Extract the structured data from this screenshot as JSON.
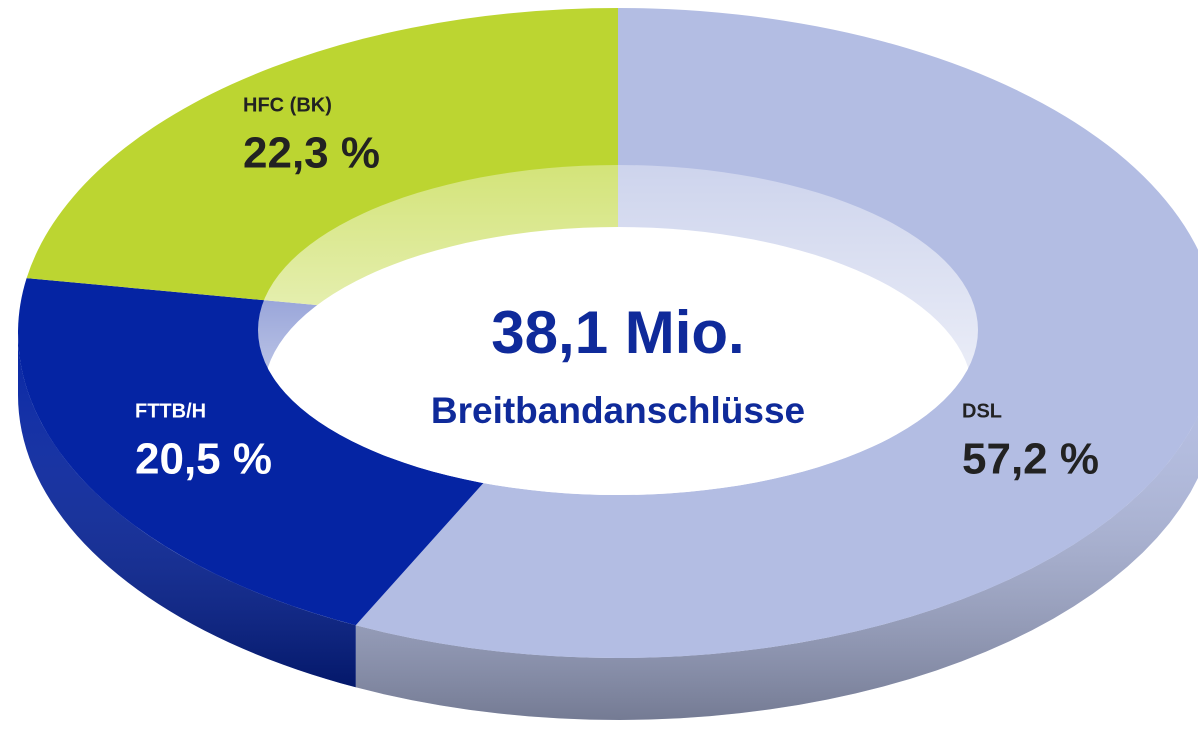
{
  "chart_data": {
    "type": "pie",
    "categories": [
      "DSL",
      "FTTB/H",
      "HFC (BK)"
    ],
    "values": [
      57.2,
      20.5,
      22.3
    ],
    "value_labels": [
      "57,2 %",
      "20,5 %",
      "22,3 %"
    ],
    "colors": [
      "#b3bde3",
      "#0524a3",
      "#bcd531"
    ],
    "annotations": [
      "38,1 Mio.",
      "Breitbandanschlüsse"
    ]
  }
}
